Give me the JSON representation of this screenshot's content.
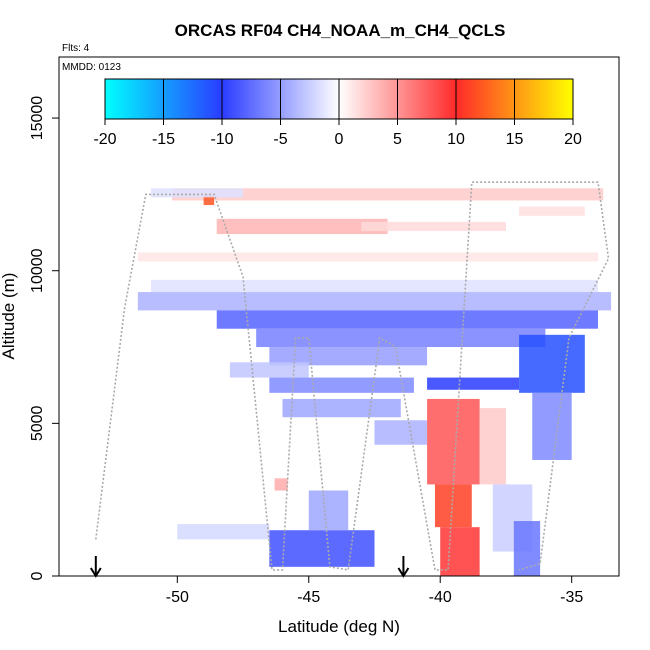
{
  "chart_data": {
    "type": "heatmap",
    "title": "ORCAS RF04 CH4_NOAA_m_CH4_QCLS",
    "flights_label": "Flts: 4",
    "date_label": "MMDD: 0123",
    "xlabel": "Latitude (deg N)",
    "ylabel": "Altitude (m)",
    "xlim": [
      -54.5,
      -33.2
    ],
    "ylim": [
      0,
      17000
    ],
    "x_ticks": [
      -50,
      -45,
      -40,
      -35
    ],
    "x_tick_labels": [
      "-50",
      "-45",
      "-40",
      "-35"
    ],
    "y_ticks": [
      0,
      5000,
      10000,
      15000
    ],
    "y_tick_labels": [
      "0",
      "5000",
      "10000",
      "15000"
    ],
    "colorbar": {
      "range": [
        -20,
        20
      ],
      "ticks": [
        -20,
        -15,
        -10,
        -5,
        0,
        5,
        10,
        15,
        20
      ],
      "tick_labels": [
        "-20",
        "-15",
        "-10",
        "-5",
        "0",
        "5",
        "10",
        "15",
        "20"
      ],
      "colors": {
        "-20": "#00ffff",
        "-10": "#2a3cff",
        "0": "#ffffff",
        "10": "#ff2a2a",
        "20": "#ffff00"
      }
    },
    "arrows_at_latitude": [
      -53.1,
      -41.4
    ],
    "cells": [
      {
        "lat": [
          -50.2,
          -33.8
        ],
        "alt": [
          12300,
          12700
        ],
        "value": 2.5
      },
      {
        "lat": [
          -49.0,
          -48.6
        ],
        "alt": [
          12150,
          12450
        ],
        "value": 12
      },
      {
        "lat": [
          -48.5,
          -42.0
        ],
        "alt": [
          11200,
          11700
        ],
        "value": 3.5
      },
      {
        "lat": [
          -43.0,
          -37.5
        ],
        "alt": [
          11300,
          11600
        ],
        "value": 1.8
      },
      {
        "lat": [
          -37.0,
          -34.5
        ],
        "alt": [
          11800,
          12100
        ],
        "value": 1.5
      },
      {
        "lat": [
          -51.5,
          -34.0
        ],
        "alt": [
          10300,
          10600
        ],
        "value": 1.2
      },
      {
        "lat": [
          -51.0,
          -34.0
        ],
        "alt": [
          9300,
          9700
        ],
        "value": -1.5
      },
      {
        "lat": [
          -51.5,
          -33.5
        ],
        "alt": [
          8700,
          9300
        ],
        "value": -4
      },
      {
        "lat": [
          -48.5,
          -34.0
        ],
        "alt": [
          8100,
          8700
        ],
        "value": -8
      },
      {
        "lat": [
          -47.0,
          -36.0
        ],
        "alt": [
          7500,
          8100
        ],
        "value": -6.5
      },
      {
        "lat": [
          -46.5,
          -40.5
        ],
        "alt": [
          6900,
          7500
        ],
        "value": -5
      },
      {
        "lat": [
          -37.0,
          -34.5
        ],
        "alt": [
          6000,
          7900
        ],
        "value": -11
      },
      {
        "lat": [
          -40.5,
          -37.0
        ],
        "alt": [
          6100,
          6500
        ],
        "value": -10
      },
      {
        "lat": [
          -46.5,
          -41.0
        ],
        "alt": [
          6000,
          6500
        ],
        "value": -6
      },
      {
        "lat": [
          -36.5,
          -35.0
        ],
        "alt": [
          3800,
          6000
        ],
        "value": -6
      },
      {
        "lat": [
          -46.0,
          -41.5
        ],
        "alt": [
          5200,
          5800
        ],
        "value": -4.5
      },
      {
        "lat": [
          -42.5,
          -40.5
        ],
        "alt": [
          4300,
          5100
        ],
        "value": -4
      },
      {
        "lat": [
          -40.5,
          -38.5
        ],
        "alt": [
          3000,
          5800
        ],
        "value": 8
      },
      {
        "lat": [
          -40.2,
          -38.8
        ],
        "alt": [
          1600,
          3000
        ],
        "value": 11
      },
      {
        "lat": [
          -40.0,
          -38.5
        ],
        "alt": [
          0,
          1600
        ],
        "value": 9.5
      },
      {
        "lat": [
          -38.5,
          -37.5
        ],
        "alt": [
          3000,
          5500
        ],
        "value": 2.5
      },
      {
        "lat": [
          -38.0,
          -36.5
        ],
        "alt": [
          800,
          3000
        ],
        "value": -2.5
      },
      {
        "lat": [
          -37.2,
          -36.2
        ],
        "alt": [
          0,
          1800
        ],
        "value": -7
      },
      {
        "lat": [
          -46.5,
          -42.5
        ],
        "alt": [
          300,
          1500
        ],
        "value": -9
      },
      {
        "lat": [
          -45.0,
          -43.5
        ],
        "alt": [
          1500,
          2800
        ],
        "value": -4.5
      },
      {
        "lat": [
          -50.0,
          -46.5
        ],
        "alt": [
          1200,
          1700
        ],
        "value": -2
      },
      {
        "lat": [
          -46.3,
          -45.8
        ],
        "alt": [
          2800,
          3200
        ],
        "value": 4
      },
      {
        "lat": [
          -48.0,
          -45.0
        ],
        "alt": [
          6500,
          7000
        ],
        "value": -3
      },
      {
        "lat": [
          -51.0,
          -47.5
        ],
        "alt": [
          12400,
          12700
        ],
        "value": -1.5
      }
    ],
    "flight_track": [
      [
        -53.1,
        1200
      ],
      [
        -52.0,
        8800
      ],
      [
        -51.2,
        12500
      ],
      [
        -48.6,
        12500
      ],
      [
        -47.5,
        9800
      ],
      [
        -46.4,
        200
      ],
      [
        -46.0,
        200
      ],
      [
        -45.5,
        7800
      ],
      [
        -45.0,
        7800
      ],
      [
        -44.2,
        300
      ],
      [
        -43.5,
        200
      ],
      [
        -42.3,
        7800
      ],
      [
        -41.7,
        7500
      ],
      [
        -40.2,
        200
      ],
      [
        -39.7,
        200
      ],
      [
        -38.8,
        12900
      ],
      [
        -34.0,
        12900
      ],
      [
        -33.6,
        10400
      ],
      [
        -35.1,
        7800
      ],
      [
        -36.2,
        400
      ],
      [
        -37.0,
        200
      ]
    ]
  }
}
